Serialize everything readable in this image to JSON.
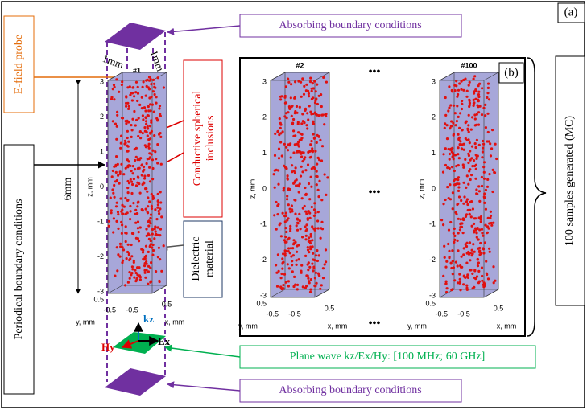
{
  "label_a": "(a)",
  "label_b": "(b)",
  "absorbing_top": "Absorbing boundary conditions",
  "absorbing_bottom": "Absorbing boundary conditions",
  "probe": "E-field probe",
  "dim_x": "1mm",
  "dim_y": "1mm",
  "inclusions": [
    "Conductive spherical",
    "inclusions"
  ],
  "periodical": "Periodical boundary conditions",
  "height": "6mm",
  "dielectric": [
    "Dielectric",
    "material"
  ],
  "plane_wave": "Plane wave kz/Ex/Hy: [100 MHz; 60 GHz]",
  "samples": "100 samples generated (MC)",
  "ellipsis": "•••",
  "field": {
    "kz": "kz",
    "ex": "Ex",
    "hy": "Hy"
  },
  "plots": [
    {
      "title": "#1",
      "zlabel": "z, mm",
      "ylabel": "y, mm",
      "xlabel": "x, mm",
      "zticks": [
        3,
        2,
        1,
        0,
        -1,
        -2,
        -3
      ],
      "yticks": [
        0.5,
        -0.5
      ],
      "xticks": [
        -0.5,
        0.5
      ]
    },
    {
      "title": "#2",
      "zlabel": "z, mm",
      "ylabel": "y, mm",
      "xlabel": "x, mm",
      "zticks": [
        3,
        2,
        1,
        0,
        -1,
        -2,
        -3
      ],
      "yticks": [
        0.5,
        -0.5
      ],
      "xticks": [
        -0.5,
        0.5
      ]
    },
    {
      "title": "#100",
      "zlabel": "z, mm",
      "ylabel": "y, mm",
      "xlabel": "x, mm",
      "zticks": [
        3,
        2,
        1,
        0,
        -1,
        -2,
        -3
      ],
      "yticks": [
        0.5,
        -0.5
      ],
      "xticks": [
        -0.5,
        0.5
      ]
    }
  ]
}
